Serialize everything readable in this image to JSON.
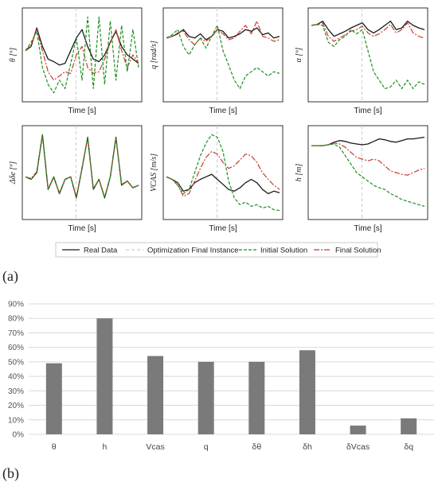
{
  "panel_labels": [
    "(a)",
    "(b)"
  ],
  "legend": [
    {
      "label": "Real Data",
      "color": "#1a1a1a",
      "dash": "none"
    },
    {
      "label": "Optimization Final Instance",
      "color": "#c8ccd6",
      "dash": "4,3"
    },
    {
      "label": "Initial Solution",
      "color": "#1f8f1f",
      "dash": "4,2"
    },
    {
      "label": "Final Solution",
      "color": "#cc3b2b",
      "dash": "7,2,2,2"
    }
  ],
  "colors": {
    "real": "#1a1a1a",
    "optim": "#c8ccd6",
    "initial": "#1f8f1f",
    "final": "#cc3b2b",
    "bar": "#7a7a7a"
  },
  "chart_data": [
    {
      "type": "line",
      "xlabel": "Time [s]",
      "ylabel": "θ [º]",
      "x": [
        0,
        0.05,
        0.1,
        0.15,
        0.2,
        0.25,
        0.3,
        0.35,
        0.4,
        0.45,
        0.5,
        0.55,
        0.6,
        0.65,
        0.7,
        0.75,
        0.8,
        0.85,
        0.9,
        0.95,
        1
      ],
      "series": [
        {
          "values": [
            0.55,
            0.6,
            0.82,
            0.6,
            0.45,
            0.42,
            0.38,
            0.4,
            0.55,
            0.7,
            0.8,
            0.6,
            0.45,
            0.42,
            0.5,
            0.65,
            0.78,
            0.6,
            0.5,
            0.45,
            0.4
          ]
        },
        {
          "values": [
            0.55,
            0.62,
            0.8,
            0.55,
            0.3,
            0.2,
            0.25,
            0.3,
            0.28,
            0.5,
            0.6,
            0.35,
            0.28,
            0.3,
            0.45,
            0.65,
            0.8,
            0.55,
            0.35,
            0.5,
            0.4
          ]
        },
        {
          "values": [
            0.55,
            0.65,
            0.78,
            0.35,
            0.15,
            0.05,
            0.2,
            0.1,
            0.4,
            0.7,
            0.2,
            0.95,
            0.1,
            0.95,
            0.15,
            0.9,
            0.2,
            0.85,
            0.3,
            0.8,
            0.35
          ]
        }
      ],
      "marker_x": 0.45
    },
    {
      "type": "line",
      "xlabel": "Time [s]",
      "ylabel": "q [rad/s]",
      "x": [
        0,
        0.05,
        0.1,
        0.15,
        0.2,
        0.25,
        0.3,
        0.35,
        0.4,
        0.45,
        0.5,
        0.55,
        0.6,
        0.65,
        0.7,
        0.75,
        0.8,
        0.85,
        0.9,
        0.95,
        1
      ],
      "series": [
        {
          "values": [
            0.7,
            0.72,
            0.75,
            0.8,
            0.72,
            0.7,
            0.75,
            0.68,
            0.72,
            0.8,
            0.78,
            0.7,
            0.72,
            0.75,
            0.8,
            0.78,
            0.82,
            0.74,
            0.76,
            0.7,
            0.72
          ]
        },
        {
          "values": [
            0.7,
            0.72,
            0.76,
            0.78,
            0.68,
            0.62,
            0.7,
            0.66,
            0.72,
            0.8,
            0.75,
            0.68,
            0.7,
            0.78,
            0.85,
            0.75,
            0.9,
            0.72,
            0.7,
            0.66,
            0.68
          ]
        },
        {
          "values": [
            0.7,
            0.74,
            0.8,
            0.6,
            0.5,
            0.62,
            0.7,
            0.58,
            0.72,
            0.85,
            0.55,
            0.38,
            0.2,
            0.1,
            0.25,
            0.3,
            0.35,
            0.3,
            0.25,
            0.3,
            0.28
          ]
        }
      ],
      "marker_x": 0.45
    },
    {
      "type": "line",
      "xlabel": "Time [s]",
      "ylabel": "α [º]",
      "x": [
        0,
        0.05,
        0.1,
        0.15,
        0.2,
        0.25,
        0.3,
        0.35,
        0.4,
        0.45,
        0.5,
        0.55,
        0.6,
        0.65,
        0.7,
        0.75,
        0.8,
        0.85,
        0.9,
        0.95,
        1
      ],
      "series": [
        {
          "values": [
            0.85,
            0.86,
            0.9,
            0.8,
            0.72,
            0.75,
            0.78,
            0.82,
            0.85,
            0.88,
            0.8,
            0.76,
            0.8,
            0.85,
            0.9,
            0.8,
            0.82,
            0.9,
            0.85,
            0.82,
            0.8
          ]
        },
        {
          "values": [
            0.85,
            0.86,
            0.88,
            0.72,
            0.66,
            0.7,
            0.74,
            0.78,
            0.8,
            0.84,
            0.76,
            0.72,
            0.75,
            0.8,
            0.86,
            0.76,
            0.8,
            0.88,
            0.76,
            0.72,
            0.7
          ]
        },
        {
          "values": [
            0.85,
            0.86,
            0.85,
            0.65,
            0.6,
            0.68,
            0.72,
            0.8,
            0.75,
            0.8,
            0.55,
            0.3,
            0.2,
            0.1,
            0.12,
            0.2,
            0.1,
            0.2,
            0.1,
            0.18,
            0.15
          ]
        }
      ],
      "marker_x": 0.45
    },
    {
      "type": "line",
      "xlabel": "Time [s]",
      "ylabel": "Δδe [º]",
      "x": [
        0,
        0.05,
        0.1,
        0.15,
        0.2,
        0.25,
        0.3,
        0.35,
        0.4,
        0.45,
        0.5,
        0.55,
        0.6,
        0.65,
        0.7,
        0.75,
        0.8,
        0.85,
        0.9,
        0.95,
        1
      ],
      "series": [
        {
          "values": [
            0.45,
            0.42,
            0.5,
            0.95,
            0.3,
            0.45,
            0.25,
            0.42,
            0.45,
            0.2,
            0.55,
            0.92,
            0.3,
            0.42,
            0.2,
            0.45,
            0.92,
            0.35,
            0.4,
            0.32,
            0.35
          ]
        },
        {
          "values": [
            0.45,
            0.43,
            0.51,
            0.94,
            0.3,
            0.44,
            0.26,
            0.42,
            0.45,
            0.21,
            0.55,
            0.91,
            0.31,
            0.42,
            0.21,
            0.45,
            0.91,
            0.36,
            0.4,
            0.32,
            0.35
          ]
        },
        {
          "values": [
            0.45,
            0.42,
            0.5,
            0.95,
            0.3,
            0.45,
            0.25,
            0.42,
            0.45,
            0.2,
            0.55,
            0.92,
            0.3,
            0.42,
            0.2,
            0.45,
            0.92,
            0.35,
            0.4,
            0.32,
            0.35
          ]
        }
      ],
      "marker_x": 0.45
    },
    {
      "type": "line",
      "xlabel": "Time [s]",
      "ylabel": "VCAS [m/s]",
      "x": [
        0,
        0.05,
        0.1,
        0.15,
        0.2,
        0.25,
        0.3,
        0.35,
        0.4,
        0.45,
        0.5,
        0.55,
        0.6,
        0.65,
        0.7,
        0.75,
        0.8,
        0.85,
        0.9,
        0.95,
        1
      ],
      "series": [
        {
          "values": [
            0.45,
            0.42,
            0.38,
            0.28,
            0.3,
            0.38,
            0.42,
            0.45,
            0.48,
            0.42,
            0.36,
            0.3,
            0.28,
            0.32,
            0.38,
            0.42,
            0.38,
            0.3,
            0.25,
            0.28,
            0.26
          ]
        },
        {
          "values": [
            0.45,
            0.42,
            0.35,
            0.22,
            0.25,
            0.4,
            0.55,
            0.68,
            0.75,
            0.72,
            0.62,
            0.55,
            0.58,
            0.65,
            0.72,
            0.7,
            0.62,
            0.5,
            0.42,
            0.35,
            0.3
          ]
        },
        {
          "values": [
            0.45,
            0.42,
            0.35,
            0.25,
            0.3,
            0.5,
            0.7,
            0.85,
            0.95,
            0.92,
            0.75,
            0.4,
            0.2,
            0.12,
            0.15,
            0.1,
            0.12,
            0.08,
            0.1,
            0.06,
            0.05
          ]
        }
      ],
      "marker_x": 0.45
    },
    {
      "type": "line",
      "xlabel": "Time [s]",
      "ylabel": "h [m]",
      "x": [
        0,
        0.05,
        0.1,
        0.15,
        0.2,
        0.25,
        0.3,
        0.35,
        0.4,
        0.45,
        0.5,
        0.55,
        0.6,
        0.65,
        0.7,
        0.75,
        0.8,
        0.85,
        0.9,
        0.95,
        1
      ],
      "series": [
        {
          "values": [
            0.82,
            0.82,
            0.82,
            0.83,
            0.86,
            0.88,
            0.87,
            0.85,
            0.84,
            0.83,
            0.84,
            0.87,
            0.9,
            0.89,
            0.87,
            0.86,
            0.88,
            0.9,
            0.9,
            0.91,
            0.92
          ]
        },
        {
          "values": [
            0.82,
            0.82,
            0.82,
            0.83,
            0.85,
            0.84,
            0.8,
            0.74,
            0.68,
            0.66,
            0.64,
            0.66,
            0.64,
            0.58,
            0.52,
            0.5,
            0.48,
            0.47,
            0.5,
            0.53,
            0.55
          ]
        },
        {
          "values": [
            0.82,
            0.82,
            0.82,
            0.83,
            0.84,
            0.8,
            0.7,
            0.6,
            0.5,
            0.45,
            0.4,
            0.35,
            0.32,
            0.3,
            0.25,
            0.22,
            0.18,
            0.16,
            0.14,
            0.12,
            0.1
          ]
        }
      ],
      "marker_x": 0.45
    },
    {
      "type": "bar",
      "categories": [
        "θ",
        "h",
        "Vcas",
        "q",
        "δθ",
        "δh",
        "δVcas",
        "δq"
      ],
      "values": [
        49,
        80,
        54,
        50,
        50,
        58,
        6,
        11
      ],
      "yticks": [
        "0%",
        "10%",
        "20%",
        "30%",
        "40%",
        "50%",
        "60%",
        "70%",
        "80%",
        "90%"
      ],
      "ylim": [
        0,
        90
      ],
      "grid": true
    }
  ]
}
